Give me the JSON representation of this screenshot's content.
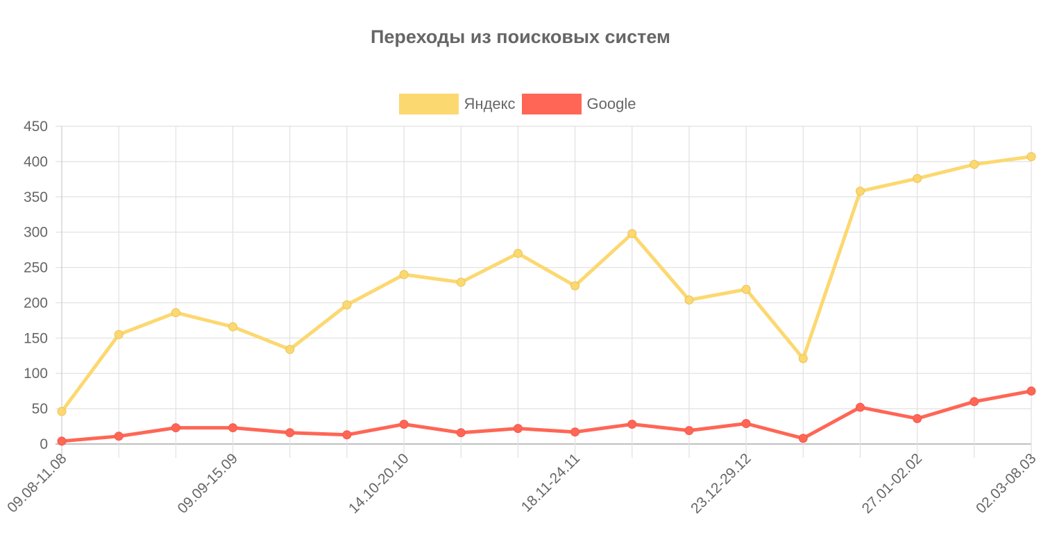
{
  "chart_data": {
    "type": "line",
    "title": "Переходы из поисковых систем",
    "xlabel": "",
    "ylabel": "",
    "ylim": [
      0,
      450
    ],
    "yticks": [
      0,
      50,
      100,
      150,
      200,
      250,
      300,
      350,
      400,
      450
    ],
    "grid": true,
    "legend_position": "top",
    "categories": [
      "09.08-11.08",
      "",
      "",
      "09.09-15.09",
      "",
      "",
      "14.10-20.10",
      "",
      "",
      "18.11-24.11",
      "",
      "",
      "23.12-29.12",
      "",
      "",
      "27.01-02.02",
      "",
      "02.03-08.03"
    ],
    "series": [
      {
        "name": "Яндекс",
        "color": "#fcd870",
        "values": [
          46,
          155,
          186,
          166,
          134,
          197,
          240,
          229,
          270,
          224,
          298,
          204,
          219,
          121,
          358,
          376,
          396,
          407
        ]
      },
      {
        "name": "Google",
        "color": "#ff6655",
        "values": [
          4,
          11,
          23,
          23,
          16,
          13,
          28,
          16,
          22,
          17,
          28,
          19,
          29,
          8,
          52,
          36,
          60,
          75
        ]
      }
    ]
  },
  "legend": {
    "items": [
      {
        "label": "Яндекс",
        "color": "#fcd870"
      },
      {
        "label": "Google",
        "color": "#ff6655"
      }
    ]
  }
}
